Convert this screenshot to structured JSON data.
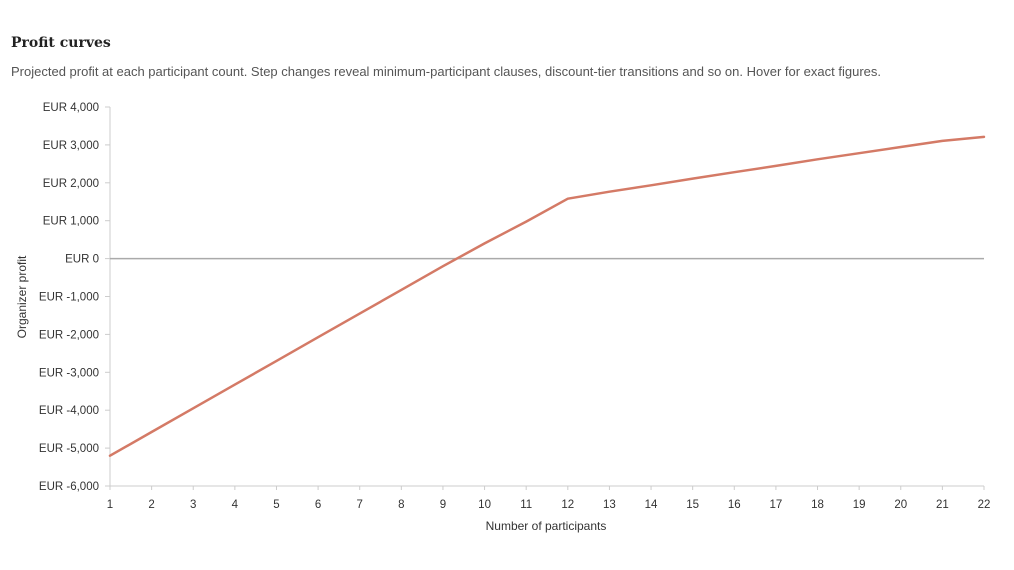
{
  "header": {
    "title": "Profit curves",
    "subtitle": "Projected profit at each participant count. Step changes reveal minimum-participant clauses, discount-tier transitions and so on. Hover for exact figures."
  },
  "chart_data": {
    "type": "line",
    "xlabel": "Number of participants",
    "ylabel": "Organizer profit",
    "x": [
      1,
      2,
      3,
      4,
      5,
      6,
      7,
      8,
      9,
      10,
      11,
      12,
      13,
      14,
      15,
      16,
      17,
      18,
      19,
      20,
      21,
      22
    ],
    "series": [
      {
        "values": [
          -5200,
          -4575,
          -3950,
          -3325,
          -2700,
          -2075,
          -1450,
          -825,
          -200,
          400,
          975,
          1580,
          1765,
          1935,
          2110,
          2280,
          2445,
          2620,
          2780,
          2945,
          3105,
          3210
        ]
      }
    ],
    "xlim": [
      1,
      22
    ],
    "ylim": [
      -6000,
      4000
    ],
    "y_ticks": [
      4000,
      3000,
      2000,
      1000,
      0,
      -1000,
      -2000,
      -3000,
      -4000,
      -5000,
      -6000
    ],
    "y_tick_labels": [
      "EUR 4,000",
      "EUR 3,000",
      "EUR 2,000",
      "EUR 1,000",
      "EUR 0",
      "EUR -1,000",
      "EUR -2,000",
      "EUR -3,000",
      "EUR -4,000",
      "EUR -5,000",
      "EUR -6,000"
    ],
    "x_tick_labels": [
      "1",
      "2",
      "3",
      "4",
      "5",
      "6",
      "7",
      "8",
      "9",
      "10",
      "11",
      "12",
      "13",
      "14",
      "15",
      "16",
      "17",
      "18",
      "19",
      "20",
      "21",
      "22"
    ],
    "zero_line": true,
    "grid": false,
    "colors": {
      "line": "#d47a66",
      "zero_line": "#aaaaaa",
      "axis": "#cccccc"
    }
  }
}
